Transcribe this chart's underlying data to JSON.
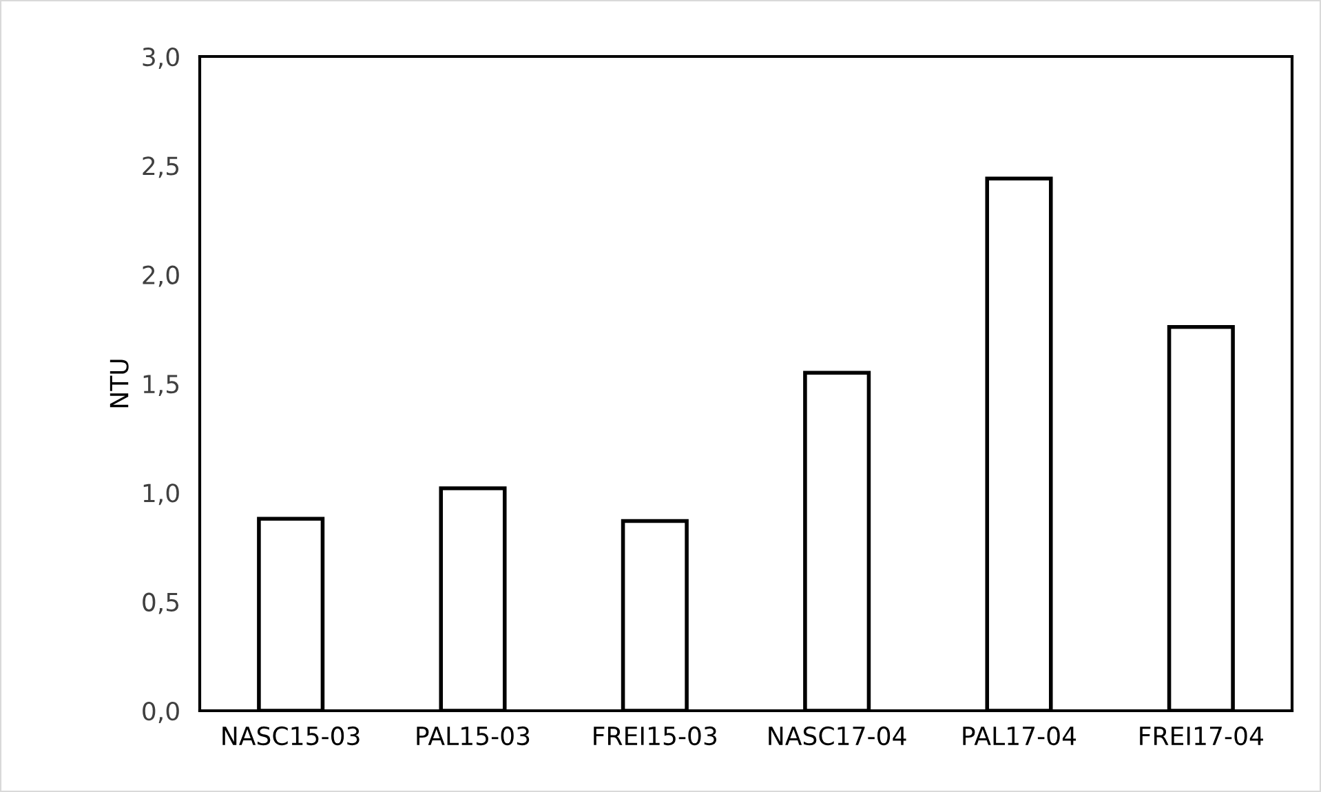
{
  "chart_data": {
    "type": "bar",
    "ylabel": "NTU",
    "categories": [
      "NASC15-03",
      "PAL15-03",
      "FREI15-03",
      "NASC17-04",
      "PAL17-04",
      "FREI17-04"
    ],
    "values": [
      0.88,
      1.02,
      0.87,
      1.55,
      2.44,
      1.76
    ],
    "color": "#ffffff",
    "ylim": [
      0,
      3.0
    ],
    "yticks": [
      {
        "value": 0,
        "label": "0,0"
      },
      {
        "value": 0.5,
        "label": "0,5"
      },
      {
        "value": 1.0,
        "label": "1,0"
      },
      {
        "value": 1.5,
        "label": "1,5"
      },
      {
        "value": 2.0,
        "label": "2,0"
      },
      {
        "value": 2.5,
        "label": "2,5"
      },
      {
        "value": 3.0,
        "label": "3,0"
      }
    ],
    "grid": false
  }
}
